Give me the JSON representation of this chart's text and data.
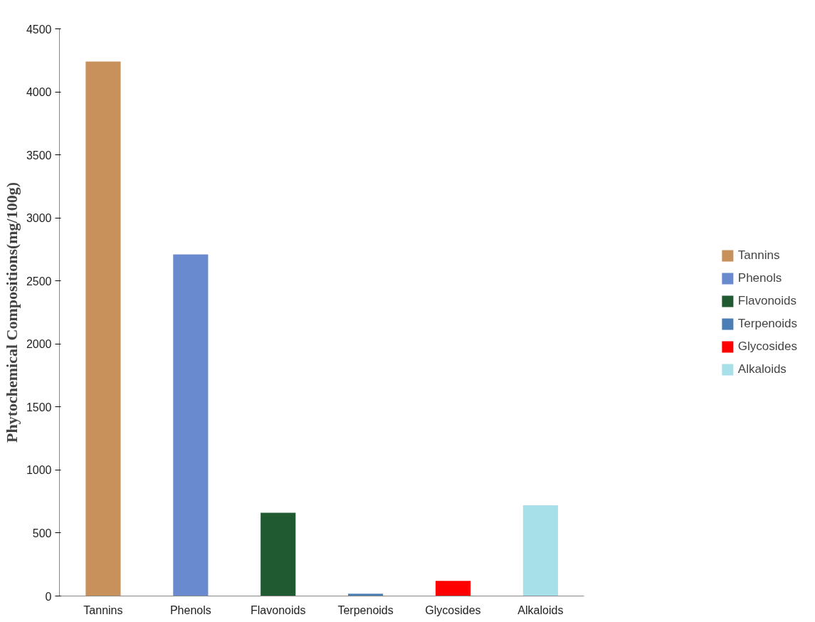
{
  "chart_data": {
    "type": "bar",
    "ylabel": "Phytochemical Compositions(mg/100g)",
    "categories": [
      "Tannins",
      "Phenols",
      "Flavonoids",
      "Terpenoids",
      "Glycosides",
      "Alkaloids"
    ],
    "series": [
      {
        "name": "Tannins",
        "color": "#c8905a",
        "values": [
          4240,
          null,
          null,
          null,
          null,
          null
        ]
      },
      {
        "name": "Phenols",
        "color": "#6a8ad0",
        "values": [
          null,
          2710,
          null,
          null,
          null,
          null
        ]
      },
      {
        "name": "Flavonoids",
        "color": "#1f5a30",
        "values": [
          null,
          null,
          660,
          null,
          null,
          null
        ]
      },
      {
        "name": "Terpenoids",
        "color": "#4a7eb5",
        "values": [
          null,
          null,
          null,
          18,
          null,
          null
        ]
      },
      {
        "name": "Glycosides",
        "color": "#ff0000",
        "values": [
          null,
          null,
          null,
          null,
          120,
          null
        ]
      },
      {
        "name": "Alkaloids",
        "color": "#a8e0ea",
        "values": [
          null,
          null,
          null,
          null,
          null,
          720
        ]
      }
    ],
    "ylim": [
      0,
      4500
    ],
    "yticks": [
      0,
      500,
      1000,
      1500,
      2000,
      2500,
      3000,
      3500,
      4000,
      4500
    ],
    "grid": false,
    "legend": "right"
  }
}
